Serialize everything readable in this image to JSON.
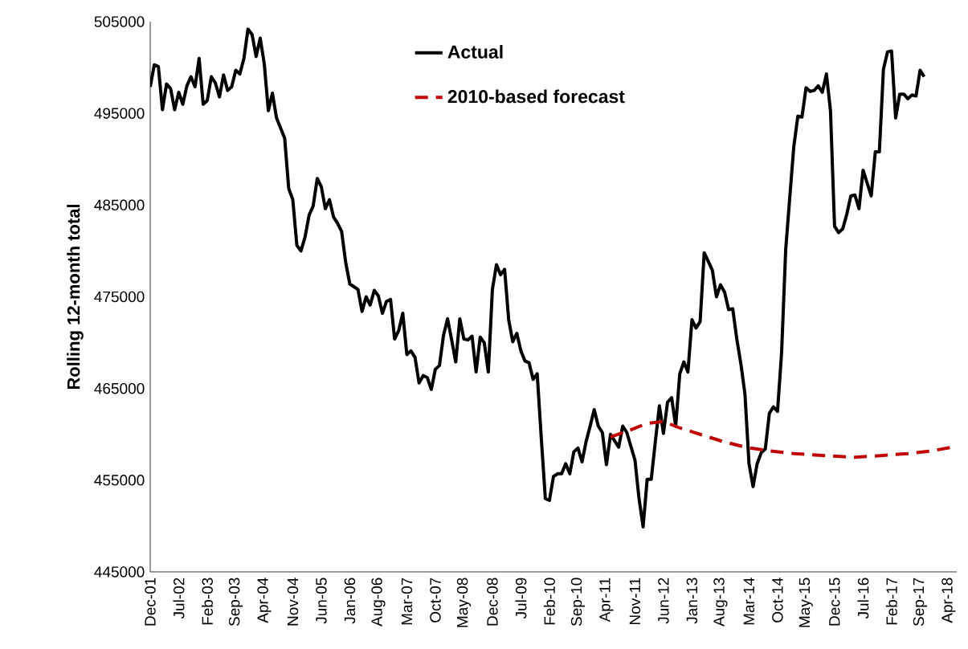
{
  "chart_data": {
    "type": "line",
    "ylabel": "Rolling 12-month total",
    "xlim": [
      "2001-12",
      "2018-06"
    ],
    "ylim": [
      445000,
      505000
    ],
    "yticks": [
      445000,
      455000,
      465000,
      475000,
      485000,
      495000,
      505000
    ],
    "xticks": [
      {
        "value": "2001-12",
        "label": "Dec-01"
      },
      {
        "value": "2002-07",
        "label": "Jul-02"
      },
      {
        "value": "2003-02",
        "label": "Feb-03"
      },
      {
        "value": "2003-09",
        "label": "Sep-03"
      },
      {
        "value": "2004-04",
        "label": "Apr-04"
      },
      {
        "value": "2004-11",
        "label": "Nov-04"
      },
      {
        "value": "2005-06",
        "label": "Jun-05"
      },
      {
        "value": "2006-01",
        "label": "Jan-06"
      },
      {
        "value": "2006-08",
        "label": "Aug-06"
      },
      {
        "value": "2007-03",
        "label": "Mar-07"
      },
      {
        "value": "2007-10",
        "label": "Oct-07"
      },
      {
        "value": "2008-05",
        "label": "May-08"
      },
      {
        "value": "2008-12",
        "label": "Dec-08"
      },
      {
        "value": "2009-07",
        "label": "Jul-09"
      },
      {
        "value": "2010-02",
        "label": "Feb-10"
      },
      {
        "value": "2010-09",
        "label": "Sep-10"
      },
      {
        "value": "2011-04",
        "label": "Apr-11"
      },
      {
        "value": "2011-11",
        "label": "Nov-11"
      },
      {
        "value": "2012-06",
        "label": "Jun-12"
      },
      {
        "value": "2013-01",
        "label": "Jan-13"
      },
      {
        "value": "2013-08",
        "label": "Aug-13"
      },
      {
        "value": "2014-03",
        "label": "Mar-14"
      },
      {
        "value": "2014-10",
        "label": "Oct-14"
      },
      {
        "value": "2015-05",
        "label": "May-15"
      },
      {
        "value": "2015-12",
        "label": "Dec-15"
      },
      {
        "value": "2016-07",
        "label": "Jul-16"
      },
      {
        "value": "2017-02",
        "label": "Feb-17"
      },
      {
        "value": "2017-09",
        "label": "Sep-17"
      },
      {
        "value": "2018-04",
        "label": "Apr-18"
      }
    ],
    "grid": false,
    "legend": "top",
    "marker": "none",
    "series": [
      {
        "name": "Actual",
        "color": "#000000",
        "line_style": "solid",
        "x": [
          "2001-12",
          "2002-01",
          "2002-02",
          "2002-03",
          "2002-04",
          "2002-05",
          "2002-06",
          "2002-07",
          "2002-08",
          "2002-09",
          "2002-10",
          "2002-11",
          "2002-12",
          "2003-01",
          "2003-02",
          "2003-03",
          "2003-04",
          "2003-05",
          "2003-06",
          "2003-07",
          "2003-08",
          "2003-09",
          "2003-10",
          "2003-11",
          "2003-12",
          "2004-01",
          "2004-02",
          "2004-03",
          "2004-04",
          "2004-05",
          "2004-06",
          "2004-07",
          "2004-09",
          "2004-10",
          "2004-11",
          "2004-12",
          "2005-01",
          "2005-02",
          "2005-03",
          "2005-04",
          "2005-05",
          "2005-06",
          "2005-07",
          "2005-08",
          "2005-09",
          "2005-10",
          "2005-11",
          "2005-12",
          "2006-01",
          "2006-03",
          "2006-04",
          "2006-05",
          "2006-06",
          "2006-07",
          "2006-08",
          "2006-09",
          "2006-10",
          "2006-11",
          "2006-12",
          "2007-01",
          "2007-02",
          "2007-03",
          "2007-04",
          "2007-05",
          "2007-06",
          "2007-07",
          "2007-08",
          "2007-09",
          "2007-10",
          "2007-11",
          "2007-12",
          "2008-01",
          "2008-02",
          "2008-03",
          "2008-04",
          "2008-05",
          "2008-06",
          "2008-07",
          "2008-08",
          "2008-09",
          "2008-10",
          "2008-11",
          "2008-12",
          "2009-01",
          "2009-02",
          "2009-03",
          "2009-04",
          "2009-05",
          "2009-06",
          "2009-07",
          "2009-08",
          "2009-09",
          "2009-10",
          "2009-11",
          "2009-12",
          "2010-01",
          "2010-02",
          "2010-03",
          "2010-04",
          "2010-05",
          "2010-06",
          "2010-07",
          "2010-08",
          "2010-09",
          "2010-10",
          "2010-11",
          "2010-12",
          "2011-01",
          "2011-02",
          "2011-03",
          "2011-04",
          "2011-05",
          "2011-07",
          "2011-08",
          "2011-09",
          "2011-11",
          "2011-12",
          "2012-01",
          "2012-02",
          "2012-03",
          "2012-04",
          "2012-05",
          "2012-06",
          "2012-07",
          "2012-08",
          "2012-09",
          "2012-10",
          "2012-11",
          "2012-12",
          "2013-01",
          "2013-02",
          "2013-03",
          "2013-04",
          "2013-06",
          "2013-07",
          "2013-08",
          "2013-09",
          "2013-10",
          "2013-11",
          "2013-12",
          "2014-01",
          "2014-02",
          "2014-03",
          "2014-04",
          "2014-05",
          "2014-06",
          "2014-07",
          "2014-08",
          "2014-09",
          "2014-10",
          "2014-11",
          "2014-12",
          "2015-01",
          "2015-02",
          "2015-03",
          "2015-04",
          "2015-05",
          "2015-06",
          "2015-07",
          "2015-08",
          "2015-09",
          "2015-10",
          "2015-11",
          "2015-12",
          "2016-01",
          "2016-02",
          "2016-03",
          "2016-04",
          "2016-05",
          "2016-06",
          "2016-07",
          "2016-08",
          "2016-09",
          "2016-10",
          "2016-11",
          "2016-12",
          "2017-01",
          "2017-02",
          "2017-03",
          "2017-04",
          "2017-05",
          "2017-06",
          "2017-07",
          "2017-08",
          "2017-09",
          "2017-10"
        ],
        "values": [
          497900,
          500300,
          500100,
          495400,
          498200,
          497700,
          495400,
          497300,
          496000,
          498000,
          499000,
          497900,
          501000,
          496000,
          496400,
          499000,
          498300,
          496800,
          499200,
          497500,
          497900,
          499700,
          499300,
          501000,
          504200,
          503600,
          501200,
          503200,
          500400,
          495300,
          497200,
          494500,
          492300,
          486800,
          485600,
          480600,
          480000,
          481500,
          483900,
          484900,
          487900,
          487000,
          484600,
          485600,
          483700,
          483000,
          482100,
          478700,
          476400,
          475800,
          473400,
          475000,
          474100,
          475700,
          475100,
          473200,
          474500,
          474700,
          470400,
          471300,
          473200,
          468700,
          469100,
          468400,
          465600,
          466400,
          466200,
          464900,
          467100,
          467500,
          470800,
          472600,
          470300,
          467900,
          472600,
          470400,
          470300,
          470700,
          466800,
          470600,
          470000,
          466800,
          475800,
          478500,
          477400,
          478000,
          472500,
          470100,
          471000,
          469100,
          468000,
          467800,
          466000,
          466600,
          459600,
          453000,
          452800,
          455400,
          455700,
          455700,
          456800,
          455700,
          458100,
          458500,
          457000,
          459200,
          460900,
          462700,
          460900,
          460200,
          456700,
          460000,
          458600,
          460900,
          460200,
          457200,
          453000,
          449900,
          455100,
          455100,
          459200,
          463100,
          460100,
          463500,
          464000,
          460900,
          466600,
          467900,
          466800,
          472500,
          471600,
          472300,
          479800,
          477900,
          475000,
          476300,
          475500,
          473600,
          473700,
          470400,
          467700,
          464400,
          456800,
          454300,
          456800,
          458000,
          458400,
          462300,
          463000,
          462500,
          468900,
          480100,
          485800,
          491400,
          494700,
          494600,
          497800,
          497400,
          497500,
          498000,
          497300,
          499300,
          495300,
          482700,
          482000,
          482400,
          484000,
          486000,
          486100,
          484600,
          488800,
          487400,
          486000,
          490800,
          490800,
          499800,
          501700,
          501800,
          494500,
          497100,
          497100,
          496600,
          497000,
          496900,
          499700,
          499000
        ]
      },
      {
        "name": "2010-based forecast",
        "color": "#c00000",
        "line_style": "dashed",
        "x": [
          "2011-05",
          "2011-10",
          "2012-02",
          "2012-06",
          "2012-10",
          "2013-03",
          "2013-08",
          "2014-02",
          "2014-08",
          "2015-02",
          "2015-09",
          "2016-05",
          "2016-12",
          "2017-06",
          "2017-12",
          "2018-06"
        ],
        "values": [
          459700,
          460500,
          461200,
          461400,
          460700,
          460000,
          459300,
          458600,
          458200,
          457900,
          457700,
          457500,
          457700,
          457900,
          458200,
          458700
        ]
      }
    ]
  }
}
